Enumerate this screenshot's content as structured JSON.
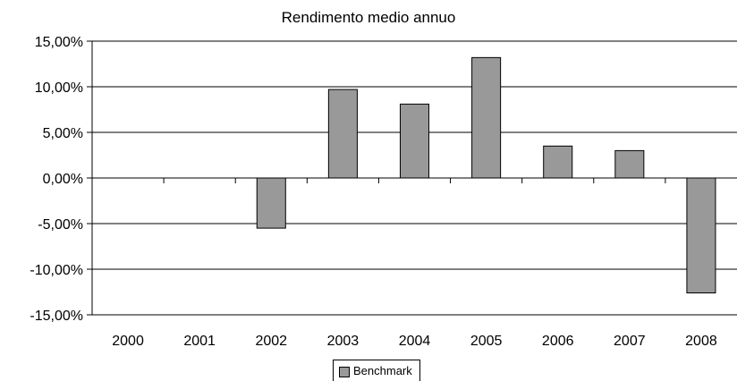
{
  "chart_data": {
    "type": "bar",
    "title": "Rendimento medio annuo",
    "categories": [
      "2000",
      "2001",
      "2002",
      "2003",
      "2004",
      "2005",
      "2006",
      "2007",
      "2008"
    ],
    "series": [
      {
        "name": "Benchmark",
        "values": [
          null,
          null,
          -5.5,
          9.7,
          8.1,
          13.2,
          3.5,
          3.0,
          -12.6
        ],
        "color": "#999999"
      }
    ],
    "ylim": [
      -15,
      15
    ],
    "yticks": [
      15,
      10,
      5,
      0,
      -5,
      -10,
      -15
    ],
    "ytick_labels": [
      "15,00%",
      "10,00%",
      "5,00%",
      "0,00%",
      "-5,00%",
      "-10,00%",
      "-15,00%"
    ],
    "grid": true,
    "legend_position": "bottom-center",
    "xlabel": "",
    "ylabel": ""
  }
}
